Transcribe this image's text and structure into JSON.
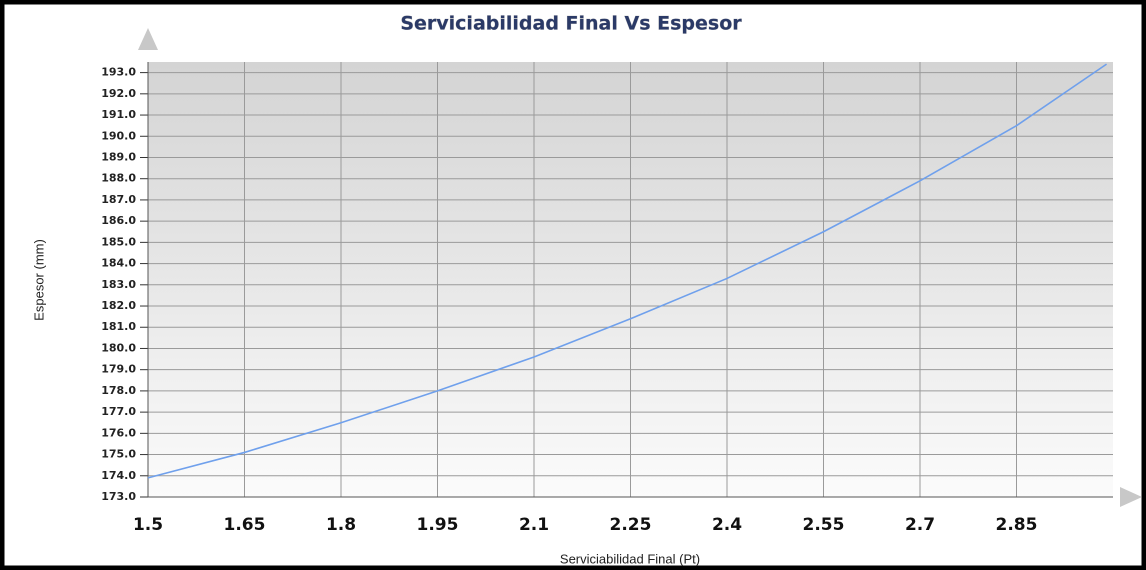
{
  "chart_data": {
    "type": "line",
    "title": "Serviciabilidad Final Vs Espesor",
    "x_label": "Serviciabilidad Final (Pt)",
    "y_label": "Espesor (mm)",
    "x": [
      1.5,
      1.65,
      1.8,
      1.95,
      2.1,
      2.25,
      2.4,
      2.55,
      2.7,
      2.85,
      2.99
    ],
    "series": [
      {
        "name": "Espesor",
        "color": "#6fa0ec",
        "values": [
          173.9,
          175.1,
          176.5,
          178.0,
          179.6,
          181.4,
          183.3,
          185.5,
          187.9,
          190.5,
          193.4
        ]
      }
    ],
    "xlim": [
      1.5,
      3.0
    ],
    "xticks": [
      1.5,
      1.65,
      1.8,
      1.95,
      2.1,
      2.25,
      2.4,
      2.55,
      2.7,
      2.85
    ],
    "ylim": [
      173,
      193.5
    ],
    "yticks": [
      {
        "value": 173,
        "label": "173.0"
      },
      {
        "value": 174,
        "label": "174.0"
      },
      {
        "value": 175,
        "label": "175.0"
      },
      {
        "value": 176,
        "label": "176.0"
      },
      {
        "value": 177,
        "label": "177.0"
      },
      {
        "value": 178,
        "label": "178.0"
      },
      {
        "value": 179,
        "label": "179.0"
      },
      {
        "value": 180,
        "label": "180.0"
      },
      {
        "value": 181,
        "label": "181.0"
      },
      {
        "value": 182,
        "label": "182.0"
      },
      {
        "value": 183,
        "label": "183.0"
      },
      {
        "value": 184,
        "label": "184.0"
      },
      {
        "value": 185,
        "label": "185.0"
      },
      {
        "value": 186,
        "label": "186.0"
      },
      {
        "value": 187,
        "label": "187.0"
      },
      {
        "value": 188,
        "label": "188.0"
      },
      {
        "value": 189,
        "label": "189.0"
      },
      {
        "value": 190,
        "label": "190.0"
      },
      {
        "value": 191,
        "label": "191.0"
      },
      {
        "value": 192,
        "label": "192.0"
      },
      {
        "value": 193,
        "label": "193.0"
      }
    ],
    "grid": true
  }
}
